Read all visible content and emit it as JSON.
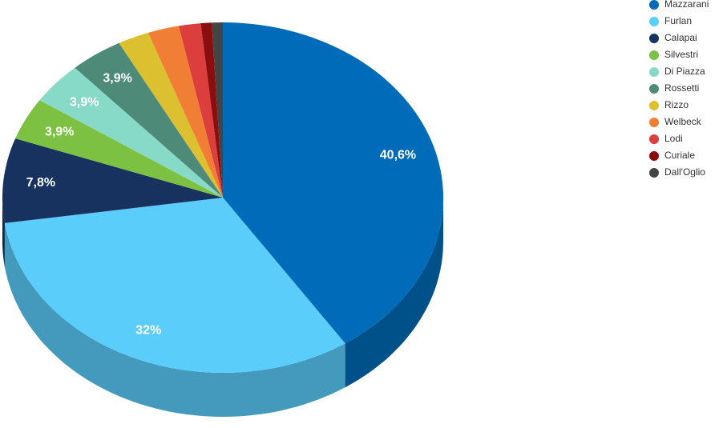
{
  "chart_data": {
    "type": "pie3d",
    "categories": [
      "Mazzarani",
      "Furlan",
      "Calapai",
      "Silvestri",
      "Di Piazza",
      "Rossetti",
      "Rizzo",
      "Welbeck",
      "Lodi",
      "Curiale",
      "Dall'Oglio"
    ],
    "values": [
      40.6,
      32,
      7.8,
      3.9,
      3.9,
      3.9,
      2.3,
      2.3,
      1.6,
      0.8,
      0.8
    ],
    "value_labels": [
      "40,6%",
      "32%",
      "7,8%",
      "3,9%",
      "3,9%",
      "3,9%",
      null,
      null,
      null,
      null,
      null
    ],
    "colors": [
      "#006bb8",
      "#5bcdfb",
      "#17325e",
      "#7dc142",
      "#87d9c8",
      "#4d8a78",
      "#dcc030",
      "#f07f35",
      "#dc3e3e",
      "#8b0e0e",
      "#444444"
    ],
    "legend": "top-right"
  }
}
